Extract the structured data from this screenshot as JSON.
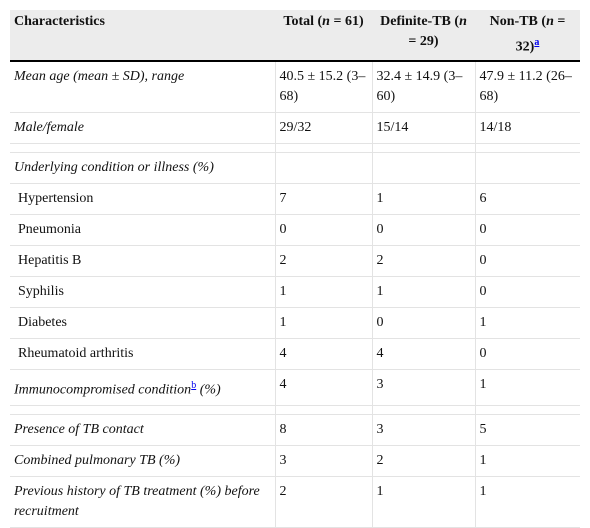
{
  "table": {
    "columns": [
      [
        "Characteristics"
      ],
      [
        "Total (",
        "n",
        " = 61)"
      ],
      [
        "Definite-TB (",
        "n",
        " = 29)"
      ],
      [
        "Non-TB (",
        "n",
        " = 32)",
        "a"
      ]
    ],
    "rows": [
      {
        "label": [
          "Mean age (mean ± SD), range"
        ],
        "style": "italic",
        "values": [
          "40.5 ± 15.2 (3–68)",
          "32.4 ± 14.9 (3–60)",
          "47.9 ± 11.2 (26–68)"
        ]
      },
      {
        "label": [
          "Male/female"
        ],
        "style": "italic",
        "values": [
          "29/32",
          "15/14",
          "14/18"
        ]
      },
      {
        "label": [
          "Underlying condition or illness (%)"
        ],
        "style": "italic",
        "values": []
      },
      {
        "label": [
          "Hypertension"
        ],
        "style": "indent",
        "values": [
          "7",
          "1",
          "6"
        ]
      },
      {
        "label": [
          "Pneumonia"
        ],
        "style": "indent",
        "values": [
          "0",
          "0",
          "0"
        ]
      },
      {
        "label": [
          "Hepatitis B"
        ],
        "style": "indent",
        "values": [
          "2",
          "2",
          "0"
        ]
      },
      {
        "label": [
          "Syphilis"
        ],
        "style": "indent",
        "values": [
          "1",
          "1",
          "0"
        ]
      },
      {
        "label": [
          "Diabetes"
        ],
        "style": "indent",
        "values": [
          "1",
          "0",
          "1"
        ]
      },
      {
        "label": [
          "Rheumatoid arthritis"
        ],
        "style": "indent",
        "values": [
          "4",
          "4",
          "0"
        ]
      },
      {
        "label": [
          "Immunocompromised condition",
          "b",
          " (%)"
        ],
        "style": "italic",
        "values": [
          "4",
          "3",
          "1"
        ]
      },
      {
        "label": [
          "Presence of TB contact"
        ],
        "style": "italic",
        "values": [
          "8",
          "3",
          "5"
        ]
      },
      {
        "label": [
          "Combined pulmonary TB (%)"
        ],
        "style": "italic",
        "values": [
          "3",
          "2",
          "1"
        ]
      },
      {
        "label": [
          "Previous history of TB treatment (%) before recruitment"
        ],
        "style": "italic",
        "values": [
          "2",
          "1",
          "1"
        ]
      }
    ]
  }
}
